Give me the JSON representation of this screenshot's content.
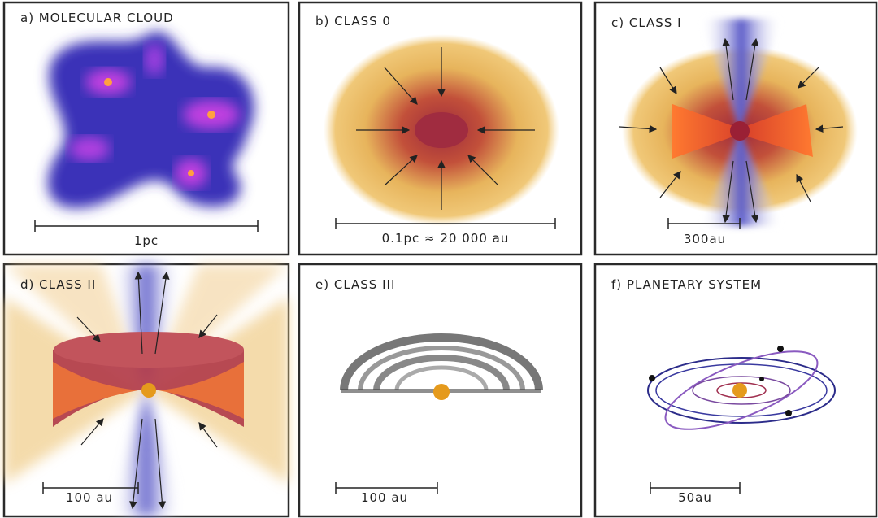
{
  "panels": [
    {
      "title": "a) MOLECULAR CLOUD",
      "scale": "1pc"
    },
    {
      "title": "b) CLASS 0",
      "scale": "0.1pc ≈ 20 000 au"
    },
    {
      "title": "c) CLASS I",
      "scale": "300au"
    },
    {
      "title": "d) CLASS II",
      "scale": "100 au"
    },
    {
      "title": "e) CLASS III",
      "scale": "100 au"
    },
    {
      "title": "f) PLANETARY SYSTEM",
      "scale": "50au"
    }
  ]
}
